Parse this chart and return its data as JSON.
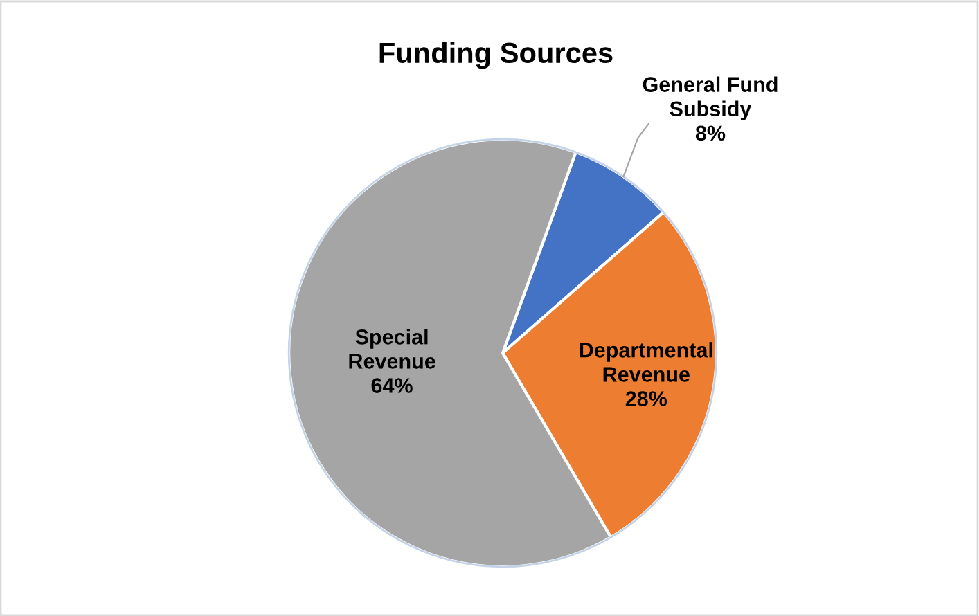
{
  "chart_data": {
    "type": "pie",
    "title": "Funding Sources",
    "categories": [
      "General Fund Subsidy",
      "Departmental Revenue",
      "Special Revenue"
    ],
    "values": [
      8,
      28,
      64
    ],
    "value_labels": [
      "8%",
      "28%",
      "64%"
    ],
    "colors": [
      "#4472c4",
      "#ed7d31",
      "#a5a5a5"
    ],
    "legend": false
  }
}
